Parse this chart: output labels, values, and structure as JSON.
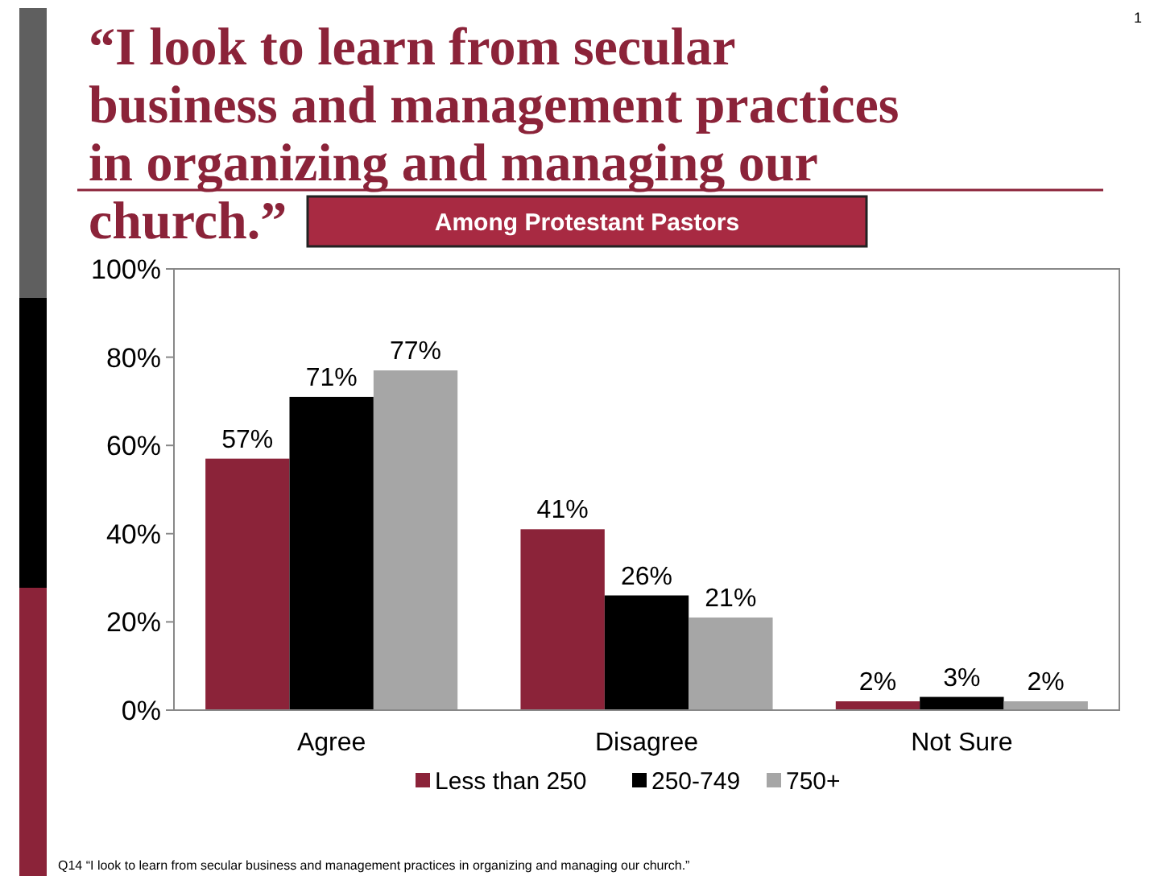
{
  "chart_data": {
    "type": "bar",
    "title": "“I look to learn from secular business and management practices in organizing and managing our church.”",
    "subtitle": "Among Protestant Pastors",
    "categories": [
      "Agree",
      "Disagree",
      "Not Sure"
    ],
    "series": [
      {
        "name": "Less than 250",
        "color": "#8b2339",
        "values": [
          57,
          41,
          2
        ],
        "value_labels": [
          "57%",
          "41%",
          "2%"
        ]
      },
      {
        "name": "250-749",
        "color": "#000000",
        "values": [
          71,
          26,
          3
        ],
        "value_labels": [
          "71%",
          "26%",
          "3%"
        ]
      },
      {
        "name": "750+",
        "color": "#a6a6a6",
        "values": [
          77,
          21,
          2
        ],
        "value_labels": [
          "77%",
          "21%",
          "2%"
        ]
      }
    ],
    "ylim": [
      0,
      100
    ],
    "yticks": [
      {
        "value": 0,
        "label": "0%"
      },
      {
        "value": 20,
        "label": "20%"
      },
      {
        "value": 40,
        "label": "40%"
      },
      {
        "value": 60,
        "label": "60%"
      },
      {
        "value": 80,
        "label": "80%"
      },
      {
        "value": 100,
        "label": "100%"
      }
    ],
    "grid": false,
    "legend": "bottom",
    "annotations": [
      "1",
      "Q14 “I look to learn from secular business and management practices in organizing and managing our church.”"
    ]
  }
}
